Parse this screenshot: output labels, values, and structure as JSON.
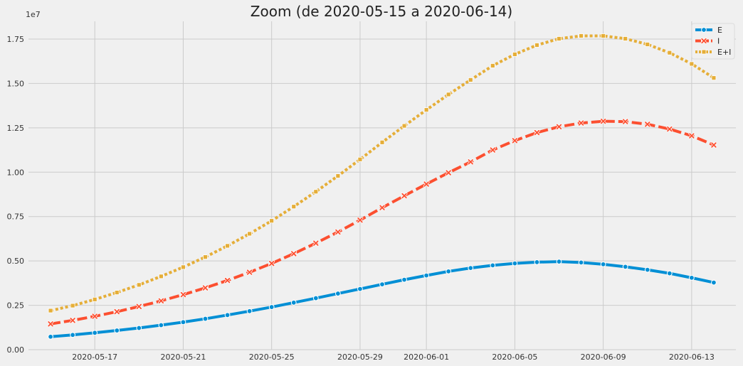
{
  "chart_data": {
    "type": "line",
    "title": "Zoom (de 2020-05-15 a 2020-06-14)",
    "xlabel": "",
    "ylabel": "",
    "y_offset_label": "1e7",
    "x": [
      "2020-05-15",
      "2020-05-16",
      "2020-05-17",
      "2020-05-18",
      "2020-05-19",
      "2020-05-20",
      "2020-05-21",
      "2020-05-22",
      "2020-05-23",
      "2020-05-24",
      "2020-05-25",
      "2020-05-26",
      "2020-05-27",
      "2020-05-28",
      "2020-05-29",
      "2020-05-30",
      "2020-05-31",
      "2020-06-01",
      "2020-06-02",
      "2020-06-03",
      "2020-06-04",
      "2020-06-05",
      "2020-06-06",
      "2020-06-07",
      "2020-06-08",
      "2020-06-09",
      "2020-06-10",
      "2020-06-11",
      "2020-06-12",
      "2020-06-13",
      "2020-06-14"
    ],
    "x_ticks": [
      "2020-05-17",
      "2020-05-21",
      "2020-05-25",
      "2020-05-29",
      "2020-06-01",
      "2020-06-05",
      "2020-06-09",
      "2020-06-13"
    ],
    "y_ticks": [
      "0.00",
      "0.25",
      "0.50",
      "0.75",
      "1.00",
      "1.25",
      "1.50",
      "1.75"
    ],
    "ylim": [
      0,
      1.85
    ],
    "grid": true,
    "legend_position": "top-right",
    "series": [
      {
        "name": "E",
        "color": "#008fd5",
        "marker": "circle",
        "line_style": "solid",
        "values": [
          0.073,
          0.083,
          0.095,
          0.108,
          0.122,
          0.138,
          0.155,
          0.174,
          0.195,
          0.217,
          0.24,
          0.265,
          0.29,
          0.316,
          0.342,
          0.368,
          0.394,
          0.418,
          0.441,
          0.46,
          0.475,
          0.486,
          0.493,
          0.496,
          0.491,
          0.481,
          0.467,
          0.45,
          0.43,
          0.405,
          0.378
        ]
      },
      {
        "name": "I",
        "color": "#fc4f30",
        "marker": "x",
        "line_style": "dashed",
        "values": [
          0.145,
          0.165,
          0.188,
          0.214,
          0.243,
          0.275,
          0.31,
          0.348,
          0.39,
          0.436,
          0.486,
          0.541,
          0.6,
          0.663,
          0.73,
          0.8,
          0.867,
          0.933,
          0.997,
          1.058,
          1.125,
          1.178,
          1.223,
          1.256,
          1.277,
          1.287,
          1.285,
          1.27,
          1.243,
          1.205,
          1.153
        ]
      },
      {
        "name": "E+I",
        "color": "#e5ae38",
        "marker": "square",
        "line_style": "dotted",
        "values": [
          0.22,
          0.248,
          0.283,
          0.322,
          0.365,
          0.413,
          0.465,
          0.522,
          0.585,
          0.653,
          0.726,
          0.806,
          0.89,
          0.979,
          1.072,
          1.168,
          1.261,
          1.351,
          1.438,
          1.52,
          1.6,
          1.664,
          1.716,
          1.752,
          1.768,
          1.768,
          1.752,
          1.72,
          1.673,
          1.61,
          1.531
        ]
      }
    ]
  }
}
